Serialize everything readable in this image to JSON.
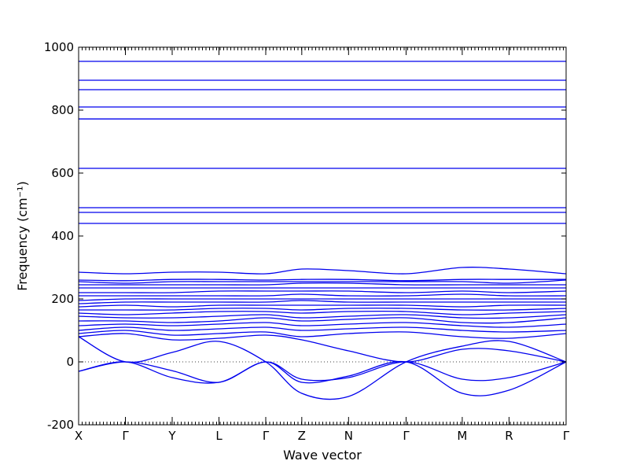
{
  "chart_data": {
    "type": "line",
    "xlabel": "Wave vector",
    "ylabel": "Frequency (cm⁻¹)",
    "ylim": [
      -200,
      1000
    ],
    "yticks": [
      -200,
      0,
      200,
      400,
      600,
      800,
      1000
    ],
    "zero_reference_line": true,
    "grid": false,
    "high_symmetry_points": [
      {
        "label": "X",
        "x": 0
      },
      {
        "label": "Γ",
        "x": 1
      },
      {
        "label": "Y",
        "x": 2
      },
      {
        "label": "L",
        "x": 3
      },
      {
        "label": "Γ",
        "x": 4
      },
      {
        "label": "Z",
        "x": 4.77
      },
      {
        "label": "N",
        "x": 5.77
      },
      {
        "label": "Γ",
        "x": 7
      },
      {
        "label": "M",
        "x": 8.2
      },
      {
        "label": "R",
        "x": 9.2
      },
      {
        "label": "Γ",
        "x": 10.42
      }
    ],
    "color": "#0000ee",
    "series": [
      {
        "values": [
          -30,
          0,
          -50,
          -65,
          0,
          -55,
          -50,
          0,
          -55,
          -50,
          0
        ]
      },
      {
        "values": [
          -30,
          0,
          -28,
          -65,
          0,
          -65,
          -45,
          0,
          -100,
          -90,
          0
        ]
      },
      {
        "values": [
          80,
          0,
          30,
          65,
          0,
          -100,
          -110,
          0,
          50,
          65,
          0
        ]
      },
      {
        "values": [
          80,
          90,
          70,
          75,
          85,
          70,
          35,
          0,
          40,
          35,
          0
        ]
      },
      {
        "values": [
          90,
          100,
          85,
          90,
          95,
          80,
          90,
          95,
          80,
          75,
          90
        ]
      },
      {
        "values": [
          100,
          110,
          100,
          105,
          110,
          100,
          105,
          110,
          100,
          95,
          100
        ]
      },
      {
        "values": [
          115,
          120,
          115,
          120,
          125,
          115,
          120,
          125,
          115,
          110,
          120
        ]
      },
      {
        "values": [
          130,
          130,
          125,
          130,
          140,
          130,
          135,
          140,
          125,
          125,
          140
        ]
      },
      {
        "values": [
          145,
          140,
          140,
          145,
          150,
          140,
          145,
          150,
          140,
          140,
          150
        ]
      },
      {
        "values": [
          155,
          150,
          155,
          160,
          160,
          155,
          160,
          160,
          150,
          155,
          160
        ]
      },
      {
        "values": [
          165,
          165,
          165,
          170,
          170,
          165,
          170,
          170,
          165,
          165,
          170
        ]
      },
      {
        "values": [
          175,
          180,
          175,
          180,
          180,
          180,
          180,
          180,
          175,
          180,
          180
        ]
      },
      {
        "values": [
          185,
          190,
          190,
          190,
          190,
          195,
          190,
          190,
          190,
          190,
          190
        ]
      },
      {
        "values": [
          195,
          200,
          200,
          200,
          200,
          200,
          200,
          200,
          200,
          200,
          200
        ]
      },
      {
        "values": [
          210,
          210,
          210,
          210,
          210,
          215,
          210,
          210,
          215,
          210,
          210
        ]
      },
      {
        "values": [
          220,
          220,
          220,
          225,
          225,
          225,
          225,
          220,
          225,
          220,
          225
        ]
      },
      {
        "values": [
          235,
          235,
          235,
          235,
          235,
          235,
          235,
          235,
          235,
          235,
          235
        ]
      },
      {
        "values": [
          245,
          245,
          245,
          245,
          245,
          250,
          250,
          245,
          245,
          245,
          245
        ]
      },
      {
        "values": [
          255,
          250,
          255,
          255,
          255,
          255,
          255,
          255,
          255,
          250,
          260
        ]
      },
      {
        "values": [
          260,
          258,
          262,
          262,
          260,
          262,
          262,
          258,
          262,
          262,
          262
        ]
      },
      {
        "values": [
          285,
          280,
          285,
          285,
          280,
          295,
          290,
          280,
          300,
          295,
          280
        ]
      },
      {
        "values": [
          440,
          440,
          440,
          440,
          440,
          440,
          440,
          440,
          440,
          440,
          440
        ]
      },
      {
        "values": [
          475,
          475,
          475,
          475,
          475,
          475,
          475,
          475,
          475,
          475,
          475
        ]
      },
      {
        "values": [
          490,
          490,
          490,
          490,
          490,
          490,
          490,
          490,
          490,
          490,
          490
        ]
      },
      {
        "values": [
          615,
          615,
          615,
          615,
          615,
          615,
          615,
          615,
          615,
          615,
          615
        ]
      },
      {
        "values": [
          772,
          772,
          772,
          772,
          772,
          772,
          772,
          772,
          772,
          772,
          772
        ]
      },
      {
        "values": [
          810,
          810,
          810,
          810,
          810,
          810,
          810,
          810,
          810,
          810,
          810
        ]
      },
      {
        "values": [
          865,
          865,
          865,
          865,
          865,
          865,
          865,
          865,
          865,
          865,
          865
        ]
      },
      {
        "values": [
          895,
          895,
          895,
          895,
          895,
          895,
          895,
          895,
          895,
          895,
          895
        ]
      },
      {
        "values": [
          955,
          955,
          955,
          955,
          955,
          955,
          955,
          955,
          955,
          955,
          955
        ]
      }
    ]
  }
}
